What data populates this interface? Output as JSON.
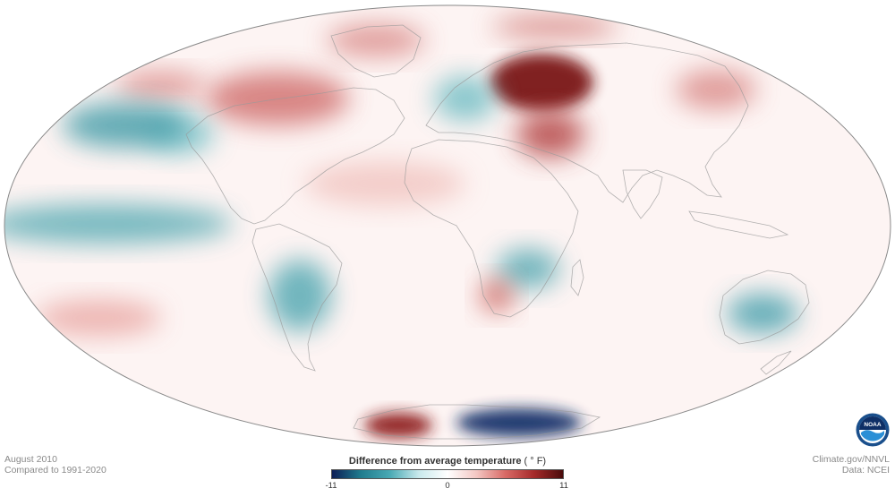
{
  "caption": {
    "date": "August 2010",
    "baseline": "Compared to 1991-2020"
  },
  "credits": {
    "site": "Climate.gov/NNVL",
    "data_source": "Data: NCEI"
  },
  "legend": {
    "title": "Difference from average temperature",
    "unit": "( ° F)",
    "min_label": "-11",
    "mid_label": "0",
    "max_label": "11",
    "min_value": -11,
    "max_value": 11,
    "colors": [
      "#0d1e55",
      "#1f7c8e",
      "#49a9b4",
      "#c8e9ec",
      "#ffffff",
      "#f3c7c3",
      "#d96a66",
      "#a52a2a",
      "#4a0b0b"
    ]
  },
  "logo": {
    "text": "NOAA",
    "icon": "noaa-logo-icon"
  },
  "map": {
    "projection": "Mollweide",
    "ocean_color": "#fdf4f3",
    "outline_color": "#8a8a8a"
  },
  "anomalies": [
    {
      "region": "western-russia",
      "value": 9,
      "color": "#7a1414"
    },
    {
      "region": "ural-region",
      "value": 5,
      "color": "#b13c3c"
    },
    {
      "region": "north-atlantic",
      "value": 4,
      "color": "#cf6b69"
    },
    {
      "region": "greenland",
      "value": 3,
      "color": "#d98785"
    },
    {
      "region": "alaska-arctic",
      "value": 3,
      "color": "#d98785"
    },
    {
      "region": "east-siberia",
      "value": 3,
      "color": "#d98785"
    },
    {
      "region": "arctic-ocean",
      "value": 3,
      "color": "#d07875"
    },
    {
      "region": "west-europe",
      "value": -2,
      "color": "#6cbcc3"
    },
    {
      "region": "canada",
      "value": -2,
      "color": "#78c2c9"
    },
    {
      "region": "north-pacific",
      "value": -4,
      "color": "#3d9aa6"
    },
    {
      "region": "pacific-stripe",
      "value": -3,
      "color": "#56aab3"
    },
    {
      "region": "south-america",
      "value": -3,
      "color": "#4da6b0"
    },
    {
      "region": "southern-africa",
      "value": -3,
      "color": "#4fa6b0"
    },
    {
      "region": "namibia",
      "value": 4,
      "color": "#c8534e"
    },
    {
      "region": "western-australia",
      "value": -4,
      "color": "#3f9daa"
    },
    {
      "region": "antarctica-east",
      "value": -10,
      "color": "#16306a"
    },
    {
      "region": "antarctica-west",
      "value": 8,
      "color": "#8e1e1e"
    },
    {
      "region": "south-pacific",
      "value": 2,
      "color": "#e9a6a2"
    },
    {
      "region": "sahara",
      "value": 1,
      "color": "#f1c4c0"
    }
  ]
}
